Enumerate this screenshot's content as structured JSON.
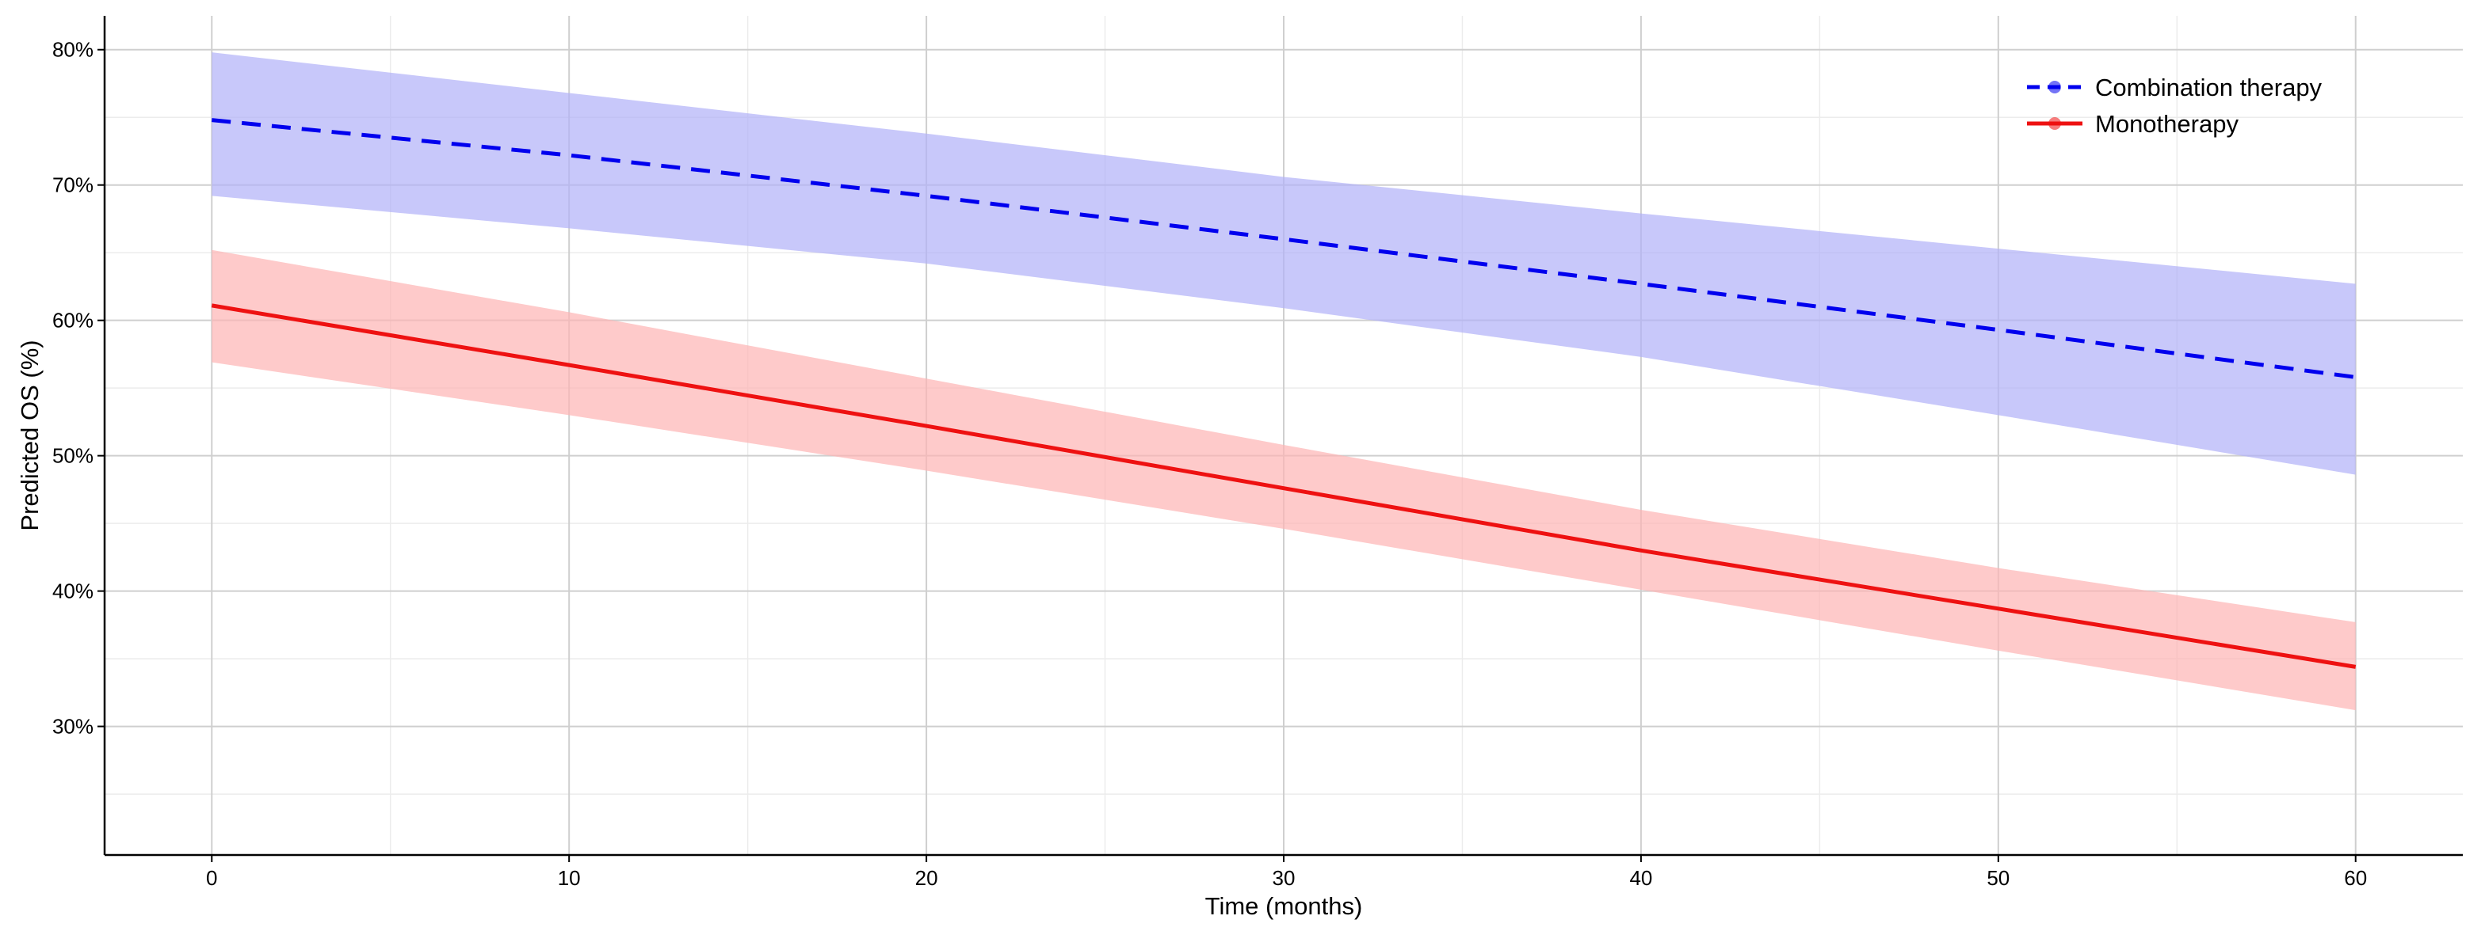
{
  "chart_data": {
    "type": "line",
    "title": "",
    "xlabel": "Time (months)",
    "ylabel": "Predicted OS (%)",
    "xlim": [
      -3,
      63
    ],
    "ylim": [
      20.5,
      82.5
    ],
    "x_ticks": [
      0,
      10,
      20,
      30,
      40,
      50,
      60
    ],
    "x_tick_labels": [
      "0",
      "10",
      "20",
      "30",
      "40",
      "50",
      "60"
    ],
    "y_ticks": [
      30,
      40,
      50,
      60,
      70,
      80
    ],
    "y_tick_labels": [
      "30%",
      "40%",
      "50%",
      "60%",
      "70%",
      "80%"
    ],
    "grid": true,
    "legend_position": "top-right",
    "series": [
      {
        "name": "Combination therapy",
        "color": "#0000ee",
        "band_color": "#b0b0f8",
        "line_style": "dashed",
        "x": [
          0,
          10,
          20,
          30,
          40,
          50,
          60
        ],
        "values": [
          74.8,
          72.2,
          69.2,
          66.0,
          62.7,
          59.3,
          55.8
        ],
        "lower": [
          69.2,
          66.8,
          64.2,
          60.9,
          57.3,
          53.0,
          48.6
        ],
        "upper": [
          79.8,
          76.8,
          73.8,
          70.6,
          67.9,
          65.3,
          62.7
        ]
      },
      {
        "name": "Monotherapy",
        "color": "#ee1111",
        "band_color": "#fdb4b4",
        "line_style": "solid",
        "x": [
          0,
          10,
          20,
          30,
          40,
          50,
          60
        ],
        "values": [
          61.1,
          56.7,
          52.2,
          47.6,
          43.0,
          38.7,
          34.4
        ],
        "lower": [
          56.9,
          53.0,
          48.9,
          44.6,
          40.1,
          35.6,
          31.2
        ],
        "upper": [
          65.2,
          60.6,
          55.7,
          50.8,
          46.0,
          41.7,
          37.7
        ]
      }
    ]
  }
}
